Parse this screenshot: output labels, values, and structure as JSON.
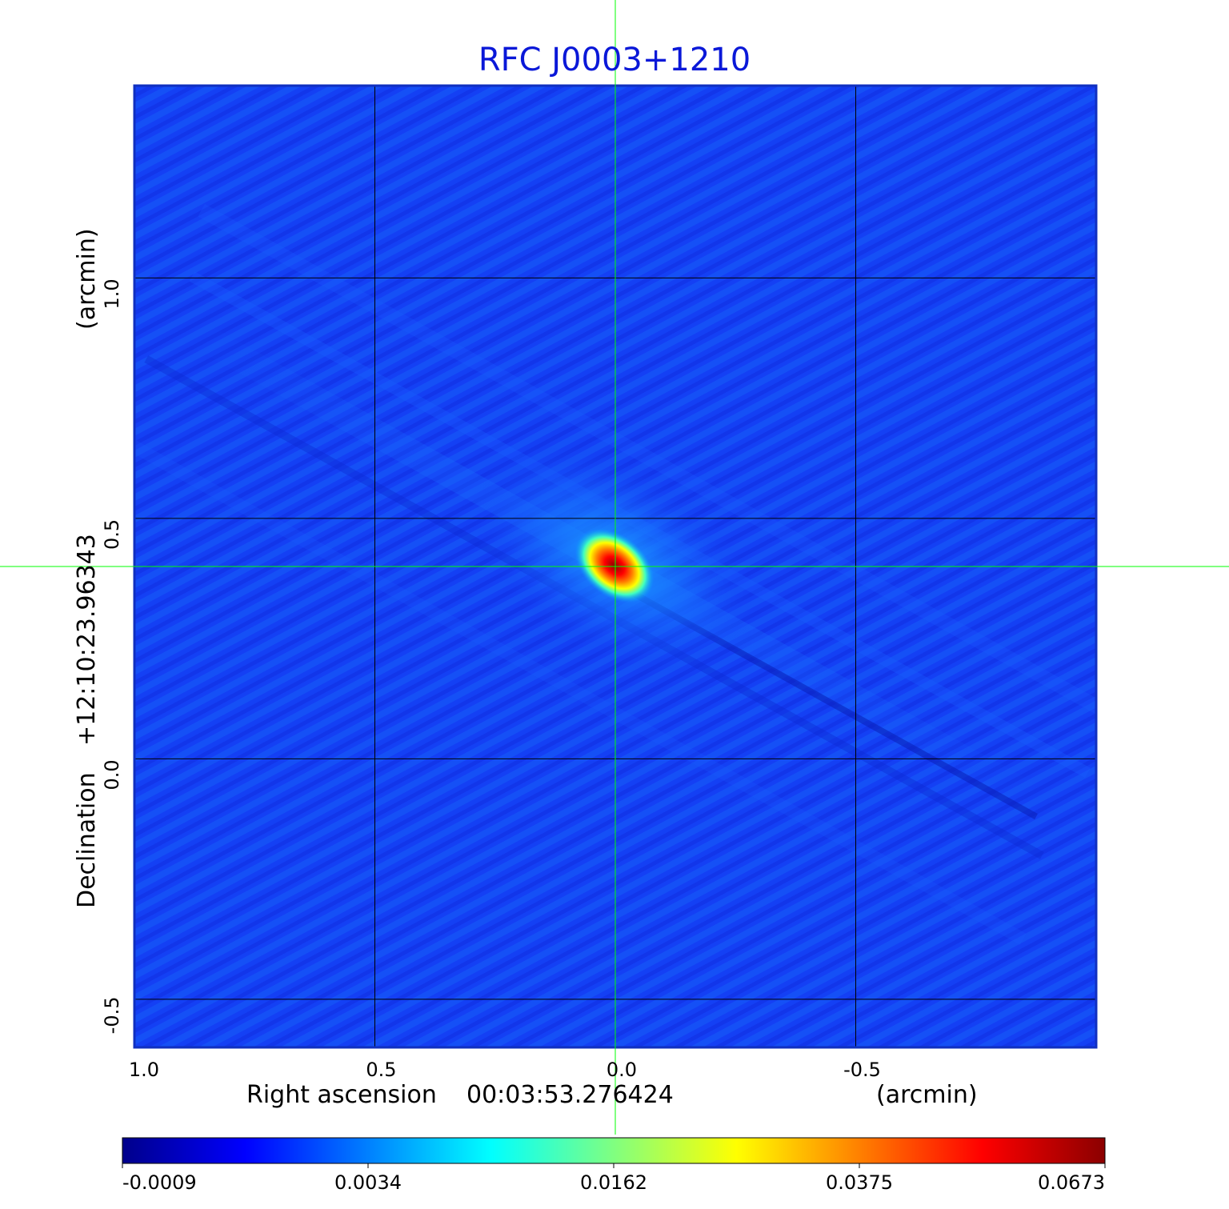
{
  "chart_data": {
    "type": "heatmap",
    "title": "RFC J0003+1210",
    "xlabel": {
      "name": "Right ascension",
      "value": "00:03:53.276424",
      "unit": "(arcmin)"
    },
    "ylabel": {
      "name": "Declination",
      "value": "+12:10:23.96343",
      "unit": "(arcmin)"
    },
    "x_range": [
      1.0,
      -1.0
    ],
    "y_range": [
      -0.6,
      1.4
    ],
    "x_ticks": [
      {
        "value": 1.0,
        "label": "1.0"
      },
      {
        "value": 0.5,
        "label": "0.5"
      },
      {
        "value": 0.0,
        "label": "0.0"
      },
      {
        "value": -0.5,
        "label": "-0.5"
      }
    ],
    "y_ticks": [
      {
        "value": -0.5,
        "label": "-0.5"
      },
      {
        "value": 0.0,
        "label": "0.0"
      },
      {
        "value": 0.5,
        "label": "0.5"
      },
      {
        "value": 1.0,
        "label": "1.0"
      }
    ],
    "grid": true,
    "crosshair": {
      "x": 0.0,
      "y": 0.4
    },
    "peak": {
      "x": 0.0,
      "y": 0.4,
      "value": 0.0673
    },
    "colorbar": {
      "min": -0.0009,
      "max": 0.0673,
      "ticks": [
        "-0.0009",
        "0.0034",
        "0.0162",
        "0.0375",
        "0.0673"
      ],
      "colors": [
        "#00008b",
        "#0000ff",
        "#0080ff",
        "#00ffff",
        "#80ff80",
        "#ffff00",
        "#ff8000",
        "#ff0000",
        "#8b0000"
      ]
    }
  },
  "colors": {
    "title": "#0a18d8",
    "crosshair": "#00ff00",
    "grid": "#000000",
    "background_field": "#1440f4"
  }
}
